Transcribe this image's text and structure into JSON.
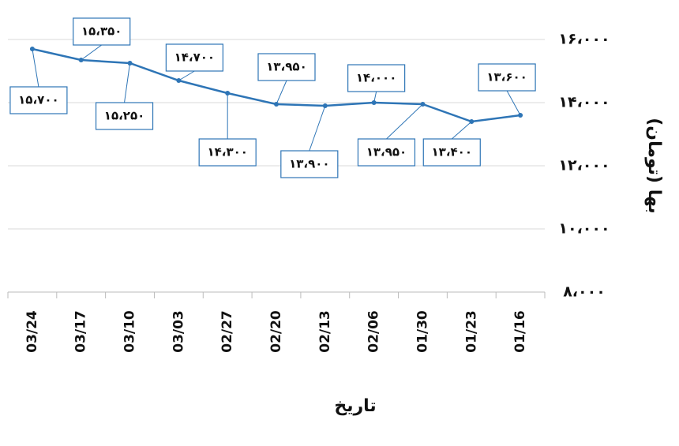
{
  "chart_data": {
    "type": "line",
    "x_label": "تاریخ",
    "y_label": "بها (تومان)",
    "categories": [
      "03/24",
      "03/17",
      "03/10",
      "03/03",
      "02/27",
      "02/20",
      "02/13",
      "02/06",
      "01/30",
      "01/23",
      "01/16"
    ],
    "series": [
      {
        "color": "#2e75b6",
        "values": [
          15700,
          15350,
          15250,
          14700,
          14300,
          13950,
          13900,
          14000,
          13950,
          13400,
          13600
        ],
        "value_labels": [
          "۱۵،۷۰۰",
          "۱۵،۳۵۰",
          "۱۵،۲۵۰",
          "۱۴،۷۰۰",
          "۱۴،۳۰۰",
          "۱۳،۹۵۰",
          "۱۳،۹۰۰",
          "۱۴،۰۰۰",
          "۱۳،۹۵۰",
          "۱۳،۴۰۰",
          "۱۳،۶۰۰"
        ]
      }
    ],
    "ylim": [
      8000,
      16000
    ],
    "yticks": [
      {
        "value": 8000,
        "label": "۸،۰۰۰"
      },
      {
        "value": 10000,
        "label": "۱۰،۰۰۰"
      },
      {
        "value": 12000,
        "label": "۱۲،۰۰۰"
      },
      {
        "value": 14000,
        "label": "۱۴،۰۰۰"
      },
      {
        "value": 16000,
        "label": "۱۶،۰۰۰"
      }
    ],
    "grid": true,
    "y_axis_side": "right"
  }
}
